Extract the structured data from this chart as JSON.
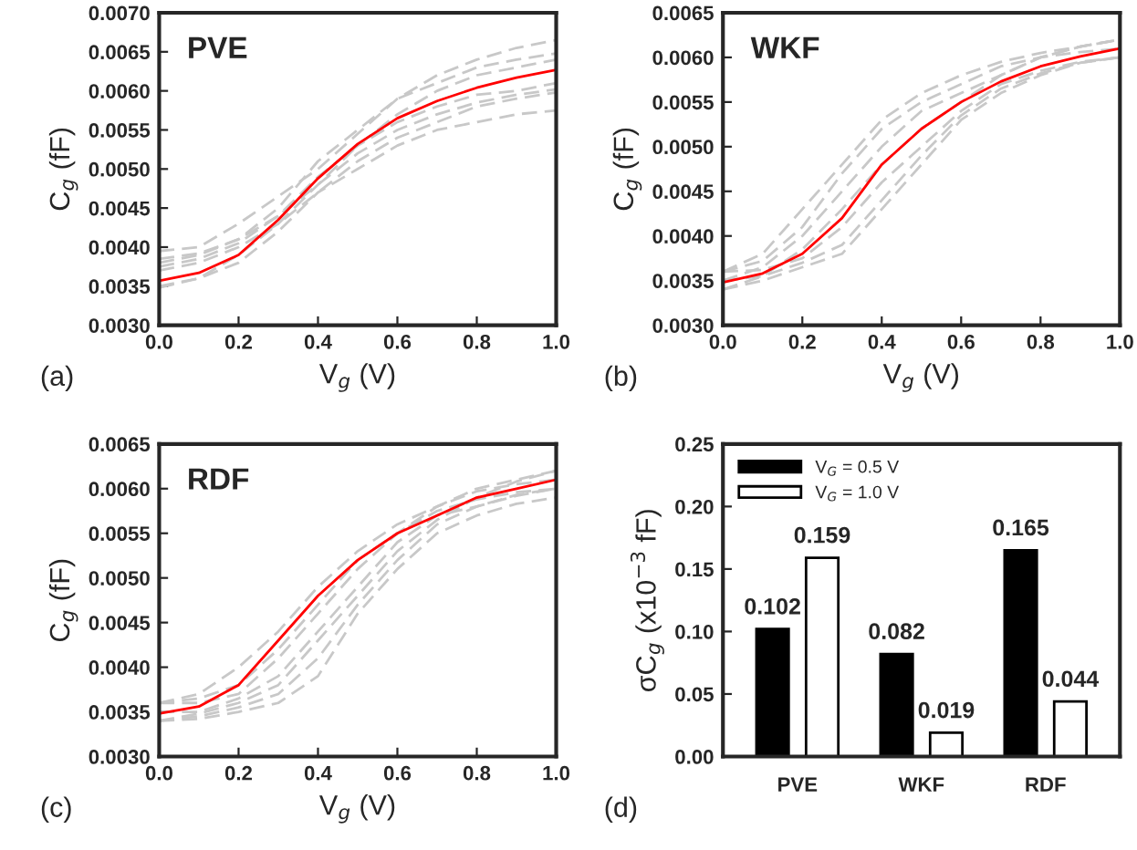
{
  "chart_data": [
    {
      "type": "line",
      "xlabel": "V$_{g}$ (V)",
      "ylabel": "C$_{g}$ (fF)",
      "annotations": [
        "PVE",
        "(a)"
      ],
      "x": [
        0,
        0.1,
        0.2,
        0.3,
        0.4,
        0.5,
        0.6,
        0.7,
        0.8,
        0.9,
        1.0
      ],
      "xlim": [
        0,
        1
      ],
      "xticks": [
        {
          "value": 0,
          "label": "0.0"
        },
        {
          "value": 0.2,
          "label": "0.2"
        },
        {
          "value": 0.4,
          "label": "0.4"
        },
        {
          "value": 0.6,
          "label": "0.6"
        },
        {
          "value": 0.8,
          "label": "0.8"
        },
        {
          "value": 1,
          "label": "1.0"
        }
      ],
      "ylim": [
        0.003,
        0.007
      ],
      "yticks": [
        {
          "value": 0.003,
          "label": "0.0030"
        },
        {
          "value": 0.0035,
          "label": "0.0035"
        },
        {
          "value": 0.004,
          "label": "0.0040"
        },
        {
          "value": 0.0045,
          "label": "0.0045"
        },
        {
          "value": 0.005,
          "label": "0.0050"
        },
        {
          "value": 0.0055,
          "label": "0.0055"
        },
        {
          "value": 0.006,
          "label": "0.0060"
        },
        {
          "value": 0.0065,
          "label": "0.0065"
        },
        {
          "value": 0.007,
          "label": "0.0070"
        }
      ],
      "grid": false,
      "legend": false,
      "series": [
        {
          "color": "#c8c8c8",
          "line_style": "dashed",
          "values": [
            0.00395,
            0.004,
            0.0043,
            0.00465,
            0.005,
            0.00545,
            0.0059,
            0.0062,
            0.0064,
            0.00655,
            0.00665
          ]
        },
        {
          "color": "#c8c8c8",
          "line_style": "dashed",
          "values": [
            0.00385,
            0.00392,
            0.0041,
            0.0045,
            0.0051,
            0.0055,
            0.0059,
            0.0061,
            0.0063,
            0.0064,
            0.00648
          ]
        },
        {
          "color": "#c8c8c8",
          "line_style": "dashed",
          "values": [
            0.0038,
            0.0039,
            0.0041,
            0.0044,
            0.0049,
            0.0053,
            0.0056,
            0.0058,
            0.00595,
            0.006,
            0.0061
          ]
        },
        {
          "color": "#c8c8c8",
          "line_style": "dashed",
          "values": [
            0.00375,
            0.00385,
            0.00405,
            0.0044,
            0.0048,
            0.0052,
            0.0055,
            0.0057,
            0.00585,
            0.00595,
            0.00602
          ]
        },
        {
          "color": "#c8c8c8",
          "line_style": "dashed",
          "values": [
            0.0037,
            0.0038,
            0.004,
            0.0043,
            0.0047,
            0.0051,
            0.0054,
            0.0056,
            0.0058,
            0.0059,
            0.00598
          ]
        },
        {
          "color": "#c8c8c8",
          "line_style": "dashed",
          "values": [
            0.0035,
            0.0036,
            0.0038,
            0.0042,
            0.0047,
            0.005,
            0.0053,
            0.0055,
            0.0056,
            0.0057,
            0.00575
          ]
        },
        {
          "color": "#c8c8c8",
          "line_style": "dashed",
          "values": [
            0.00348,
            0.0036,
            0.0039,
            0.0043,
            0.0048,
            0.0053,
            0.0057,
            0.006,
            0.0062,
            0.0063,
            0.0064
          ]
        },
        {
          "color": "#ff0000",
          "line_style": "solid",
          "values": [
            0.00357,
            0.00367,
            0.0039,
            0.00435,
            0.00488,
            0.00532,
            0.00565,
            0.00587,
            0.00604,
            0.00617,
            0.00627
          ]
        }
      ]
    },
    {
      "type": "line",
      "xlabel": "V$_{g}$ (V)",
      "ylabel": "C$_{g}$ (fF)",
      "annotations": [
        "WKF",
        "(b)"
      ],
      "x": [
        0,
        0.1,
        0.2,
        0.3,
        0.4,
        0.5,
        0.6,
        0.7,
        0.8,
        0.9,
        1.0
      ],
      "xlim": [
        0,
        1
      ],
      "xticks": [
        {
          "value": 0,
          "label": "0.0"
        },
        {
          "value": 0.2,
          "label": "0.2"
        },
        {
          "value": 0.4,
          "label": "0.4"
        },
        {
          "value": 0.6,
          "label": "0.6"
        },
        {
          "value": 0.8,
          "label": "0.8"
        },
        {
          "value": 1,
          "label": "1.0"
        }
      ],
      "ylim": [
        0.003,
        0.0065
      ],
      "yticks": [
        {
          "value": 0.003,
          "label": "0.0030"
        },
        {
          "value": 0.0035,
          "label": "0.0035"
        },
        {
          "value": 0.004,
          "label": "0.0040"
        },
        {
          "value": 0.0045,
          "label": "0.0045"
        },
        {
          "value": 0.005,
          "label": "0.0050"
        },
        {
          "value": 0.0055,
          "label": "0.0055"
        },
        {
          "value": 0.006,
          "label": "0.0060"
        },
        {
          "value": 0.0065,
          "label": "0.0065"
        }
      ],
      "grid": false,
      "legend": false,
      "series": [
        {
          "color": "#c8c8c8",
          "line_style": "dashed",
          "values": [
            0.0034,
            0.0035,
            0.00365,
            0.0038,
            0.0043,
            0.0048,
            0.0053,
            0.0056,
            0.0058,
            0.00594,
            0.006
          ]
        },
        {
          "color": "#c8c8c8",
          "line_style": "dashed",
          "values": [
            0.0035,
            0.00355,
            0.0037,
            0.0039,
            0.0044,
            0.0049,
            0.00535,
            0.00565,
            0.00582,
            0.00594,
            0.006
          ]
        },
        {
          "color": "#c8c8c8",
          "line_style": "dashed",
          "values": [
            0.0036,
            0.00362,
            0.00375,
            0.0041,
            0.0046,
            0.005,
            0.0054,
            0.0057,
            0.00585,
            0.00595,
            0.006
          ]
        },
        {
          "color": "#c8c8c8",
          "line_style": "dashed",
          "values": [
            0.0034,
            0.00355,
            0.00385,
            0.0043,
            0.0048,
            0.0052,
            0.0055,
            0.0058,
            0.006,
            0.00612,
            0.0062
          ]
        },
        {
          "color": "#c8c8c8",
          "line_style": "dashed",
          "values": [
            0.0035,
            0.00365,
            0.004,
            0.0045,
            0.005,
            0.0054,
            0.0056,
            0.0058,
            0.006,
            0.00612,
            0.0062
          ]
        },
        {
          "color": "#c8c8c8",
          "line_style": "dashed",
          "values": [
            0.0036,
            0.00372,
            0.0041,
            0.0047,
            0.0052,
            0.0055,
            0.0057,
            0.0059,
            0.006,
            0.00606,
            0.0061
          ]
        },
        {
          "color": "#c8c8c8",
          "line_style": "dashed",
          "values": [
            0.0036,
            0.0038,
            0.0043,
            0.0048,
            0.0053,
            0.0056,
            0.0058,
            0.00595,
            0.00605,
            0.00612,
            0.0062
          ]
        },
        {
          "color": "#ff0000",
          "line_style": "solid",
          "values": [
            0.00348,
            0.00358,
            0.0038,
            0.0042,
            0.0048,
            0.0052,
            0.0055,
            0.00573,
            0.0059,
            0.00601,
            0.0061
          ]
        }
      ]
    },
    {
      "type": "line",
      "xlabel": "V$_{g}$ (V)",
      "ylabel": "C$_{g}$ (fF)",
      "annotations": [
        "RDF",
        "(c)"
      ],
      "x": [
        0,
        0.1,
        0.2,
        0.3,
        0.4,
        0.5,
        0.6,
        0.7,
        0.8,
        0.9,
        1.0
      ],
      "xlim": [
        0,
        1
      ],
      "xticks": [
        {
          "value": 0,
          "label": "0.0"
        },
        {
          "value": 0.2,
          "label": "0.2"
        },
        {
          "value": 0.4,
          "label": "0.4"
        },
        {
          "value": 0.6,
          "label": "0.6"
        },
        {
          "value": 0.8,
          "label": "0.8"
        },
        {
          "value": 1,
          "label": "1.0"
        }
      ],
      "ylim": [
        0.003,
        0.0065
      ],
      "yticks": [
        {
          "value": 0.003,
          "label": "0.0030"
        },
        {
          "value": 0.0035,
          "label": "0.0035"
        },
        {
          "value": 0.004,
          "label": "0.0040"
        },
        {
          "value": 0.0045,
          "label": "0.0045"
        },
        {
          "value": 0.005,
          "label": "0.0050"
        },
        {
          "value": 0.0055,
          "label": "0.0055"
        },
        {
          "value": 0.006,
          "label": "0.0060"
        },
        {
          "value": 0.0065,
          "label": "0.0065"
        }
      ],
      "grid": false,
      "legend": false,
      "series": [
        {
          "color": "#c8c8c8",
          "line_style": "dashed",
          "values": [
            0.0034,
            0.00342,
            0.0035,
            0.0036,
            0.0039,
            0.0046,
            0.0051,
            0.0055,
            0.0057,
            0.00583,
            0.0059
          ]
        },
        {
          "color": "#c8c8c8",
          "line_style": "dashed",
          "values": [
            0.0034,
            0.00345,
            0.00355,
            0.0037,
            0.0041,
            0.0047,
            0.0052,
            0.0056,
            0.0058,
            0.00593,
            0.006
          ]
        },
        {
          "color": "#c8c8c8",
          "line_style": "dashed",
          "values": [
            0.0034,
            0.00348,
            0.0036,
            0.0038,
            0.0043,
            0.0048,
            0.0053,
            0.00565,
            0.0059,
            0.00608,
            0.0062
          ]
        },
        {
          "color": "#c8c8c8",
          "line_style": "dashed",
          "values": [
            0.0035,
            0.0035,
            0.00365,
            0.0039,
            0.0044,
            0.0049,
            0.0054,
            0.0057,
            0.0058,
            0.00592,
            0.006
          ]
        },
        {
          "color": "#c8c8c8",
          "line_style": "dashed",
          "values": [
            0.0036,
            0.0036,
            0.0037,
            0.0041,
            0.0046,
            0.0051,
            0.0055,
            0.00575,
            0.00588,
            0.00596,
            0.006
          ]
        },
        {
          "color": "#c8c8c8",
          "line_style": "dashed",
          "values": [
            0.0036,
            0.00365,
            0.0038,
            0.0042,
            0.0047,
            0.0052,
            0.0055,
            0.0058,
            0.00597,
            0.00605,
            0.0061
          ]
        },
        {
          "color": "#c8c8c8",
          "line_style": "dashed",
          "values": [
            0.0036,
            0.0037,
            0.004,
            0.0044,
            0.0049,
            0.0053,
            0.0056,
            0.0058,
            0.006,
            0.0061,
            0.0062
          ]
        },
        {
          "color": "#ff0000",
          "line_style": "solid",
          "values": [
            0.00348,
            0.00356,
            0.0038,
            0.0043,
            0.0048,
            0.0052,
            0.0055,
            0.0057,
            0.0059,
            0.006,
            0.0061
          ]
        }
      ]
    },
    {
      "type": "bar",
      "ylabel": "σC$_{g}$ (x10$^{−3}$ fF)",
      "annotations": [
        "(d)"
      ],
      "categories": [
        "PVE",
        "WKF",
        "RDF"
      ],
      "ylim": [
        0,
        0.25
      ],
      "yticks": [
        {
          "value": 0,
          "label": "0.00"
        },
        {
          "value": 0.05,
          "label": "0.05"
        },
        {
          "value": 0.1,
          "label": "0.10"
        },
        {
          "value": 0.15,
          "label": "0.15"
        },
        {
          "value": 0.2,
          "label": "0.20"
        },
        {
          "value": 0.25,
          "label": "0.25"
        }
      ],
      "grid": false,
      "legend": "top left",
      "data_labels": true,
      "series": [
        {
          "name": "V$_{G}$ = 0.5 V",
          "color": "#000000",
          "values": [
            0.102,
            0.082,
            0.165
          ]
        },
        {
          "name": "V$_{G}$ = 1.0 V",
          "color": "#ffffff",
          "values": [
            0.159,
            0.019,
            0.044
          ]
        }
      ]
    }
  ]
}
